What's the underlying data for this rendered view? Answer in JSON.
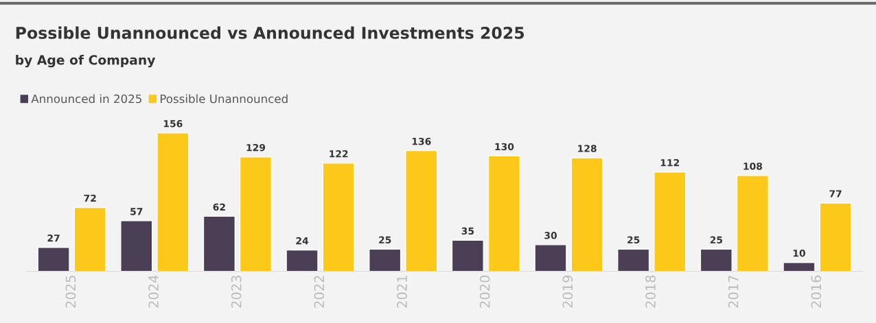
{
  "chart_data": {
    "type": "bar",
    "title": "Possible Unannounced vs Announced Investments 2025",
    "subtitle": "by Age of Company",
    "categories": [
      "2025",
      "2024",
      "2023",
      "2022",
      "2021",
      "2020",
      "2019",
      "2018",
      "2017",
      "2016"
    ],
    "series": [
      {
        "name": "Announced in 2025",
        "color": "#4b3f56",
        "values": [
          27,
          57,
          62,
          24,
          25,
          35,
          30,
          25,
          25,
          10
        ]
      },
      {
        "name": "Possible Unannounced",
        "color": "#fcc81a",
        "values": [
          72,
          156,
          129,
          122,
          136,
          130,
          128,
          112,
          108,
          77
        ]
      }
    ],
    "data_labels": true,
    "legend": "top left",
    "grid": false,
    "tick_labels": "x"
  }
}
